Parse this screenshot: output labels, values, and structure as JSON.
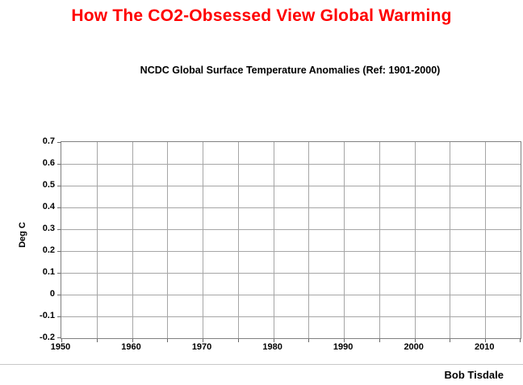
{
  "header": {
    "title": "How The CO2-Obsessed View Global Warming",
    "title_color": "#FF0000"
  },
  "footer": {
    "credit": "Bob Tisdale"
  },
  "colors": {
    "title": "#FF0000",
    "gridline": "#a6a6a6",
    "plot_border": "#808080",
    "text": "#000000",
    "background": "#ffffff"
  },
  "chart_data": {
    "type": "line",
    "title": "NCDC Global Surface Temperature Anomalies (Ref: 1901-2000)",
    "xlabel": "",
    "ylabel": "Deg C",
    "xlim": [
      1950,
      2015
    ],
    "ylim": [
      -0.2,
      0.7
    ],
    "x_tick_values": [
      1950,
      1960,
      1970,
      1980,
      1990,
      2000,
      2010
    ],
    "x_tick_labels": [
      "1950",
      "1960",
      "1970",
      "1980",
      "1990",
      "2000",
      "2010"
    ],
    "x_gridline_step": 5,
    "y_tick_values": [
      0.7,
      0.6,
      0.5,
      0.4,
      0.3,
      0.2,
      0.1,
      0,
      -0.1,
      -0.2
    ],
    "y_tick_labels": [
      "0.7",
      "0.6",
      "0.5",
      "0.4",
      "0.3",
      "0.2",
      "0.1",
      "0",
      "-0.1",
      "-0.2"
    ],
    "grid": true,
    "legend": "none",
    "series": []
  }
}
